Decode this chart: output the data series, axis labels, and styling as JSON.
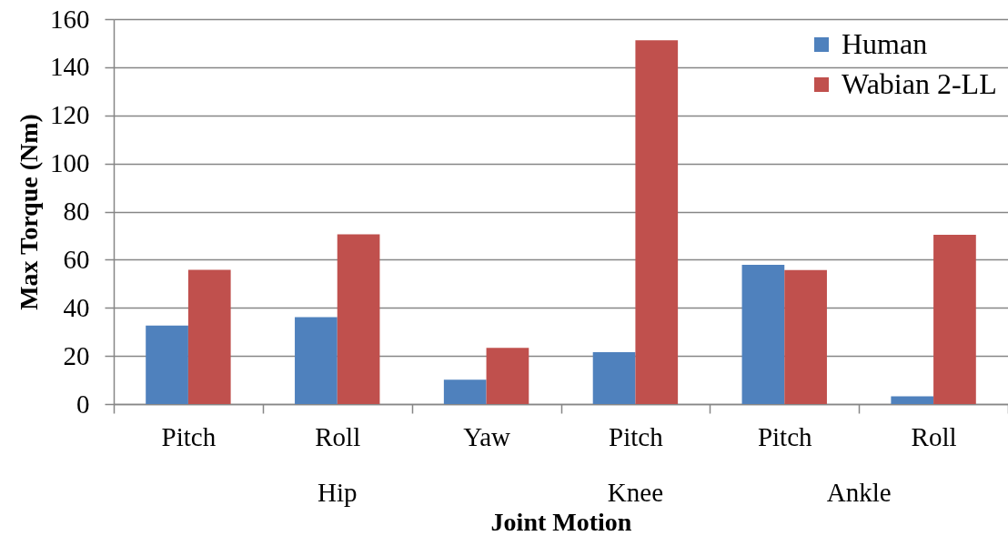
{
  "chart_data": {
    "type": "bar",
    "xlabel": "Joint Motion",
    "ylabel": "Max Torque (Nm)",
    "categories": [
      "Pitch",
      "Roll",
      "Yaw",
      "Pitch",
      "Pitch",
      "Roll"
    ],
    "series": [
      {
        "name": "Human",
        "color": "#4f81bd",
        "values": [
          32.6,
          36.1,
          10.1,
          21.6,
          57.9,
          3.2
        ]
      },
      {
        "name": "Wabian 2-LL",
        "color": "#c0504d",
        "values": [
          55.8,
          70.5,
          23.4,
          151.2,
          55.7,
          70.4
        ]
      }
    ],
    "ylim": [
      0,
      160
    ],
    "yticks": [
      0,
      20,
      40,
      60,
      80,
      100,
      120,
      140,
      160
    ],
    "grid": "y",
    "legend": "top right",
    "annotations": [
      "Hip",
      "Knee",
      "Ankle"
    ]
  }
}
